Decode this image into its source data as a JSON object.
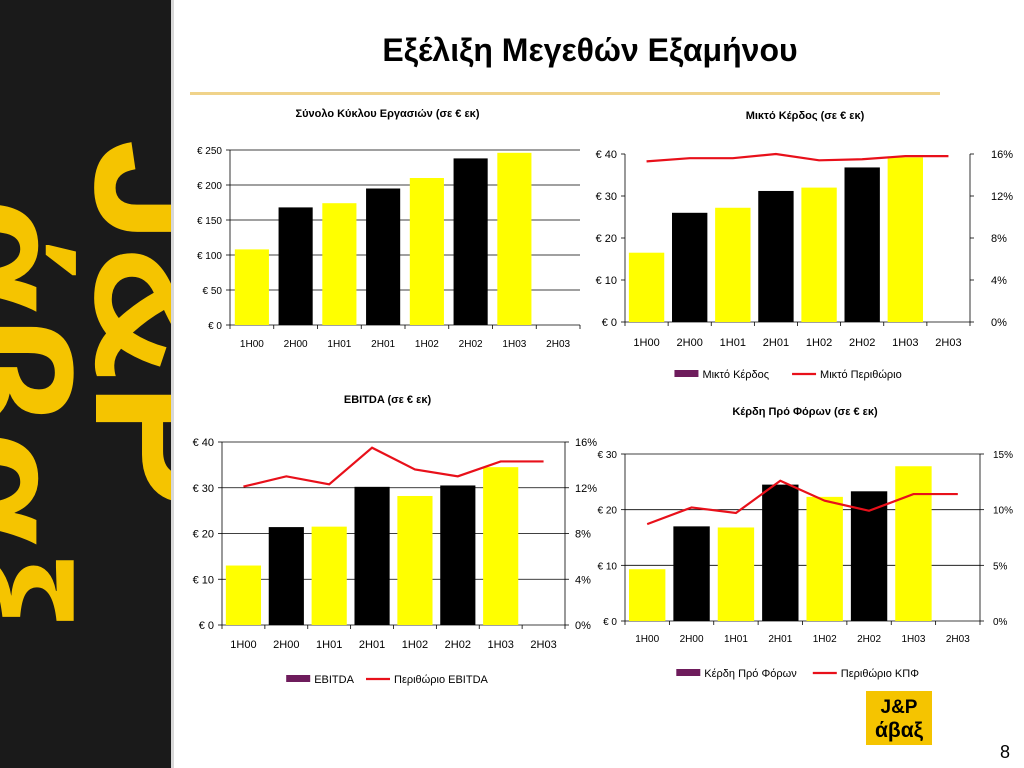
{
  "slide": {
    "title": "Εξέλιξη Μεγεθών Εξαμήνου",
    "page_number": "8"
  },
  "logo": {
    "line1": "J&P",
    "line2": "άβαξ"
  },
  "colors": {
    "black_bar": "#000000",
    "yellow_bar": "#ffff00",
    "line": "#e8101a",
    "legend_bar": "#6e1c5c",
    "stripe": "#1a1a1a",
    "logo_yellow": "#f5c400"
  },
  "chart_data": [
    {
      "id": "turnover",
      "type": "bar",
      "title": "Σύνολο Κύκλου Εργασιών (σε € εκ)",
      "categories": [
        "1H00",
        "2H00",
        "1H01",
        "2H01",
        "1H02",
        "2H02",
        "1H03",
        "2H03"
      ],
      "values": [
        108,
        168,
        174,
        195,
        210,
        238,
        246,
        null
      ],
      "bar_colors": [
        "yellow",
        "black",
        "yellow",
        "black",
        "yellow",
        "black",
        "yellow",
        "black"
      ],
      "ylim": [
        0,
        250
      ],
      "yticks": [
        "€ 0",
        "€ 50",
        "€ 100",
        "€ 150",
        "€ 200",
        "€ 250"
      ],
      "grid": true
    },
    {
      "id": "gross-profit",
      "type": "bar",
      "title": "Μικτό Κέρδος (σε € εκ)",
      "categories": [
        "1H00",
        "2H00",
        "1H01",
        "2H01",
        "1H02",
        "2H02",
        "1H03",
        "2H03"
      ],
      "values": [
        16.5,
        26,
        27.2,
        31.2,
        32,
        36.8,
        39.2,
        null
      ],
      "bar_colors": [
        "yellow",
        "black",
        "yellow",
        "black",
        "yellow",
        "black",
        "yellow",
        "black"
      ],
      "ylim": [
        0,
        40
      ],
      "yticks": [
        "€ 0",
        "€ 10",
        "€ 20",
        "€ 30",
        "€ 40"
      ],
      "y2lim": [
        0,
        16
      ],
      "y2ticks": [
        "0%",
        "4%",
        "8%",
        "12%",
        "16%"
      ],
      "line_values": [
        15.3,
        15.6,
        15.6,
        16.0,
        15.4,
        15.5,
        15.8,
        15.8
      ],
      "legend": [
        "Μικτό Κέρδος",
        "Μικτό Περιθώριο"
      ],
      "grid": false
    },
    {
      "id": "ebitda",
      "type": "bar",
      "title": "EBITDA (σε € εκ)",
      "categories": [
        "1H00",
        "2H00",
        "1H01",
        "2H01",
        "1H02",
        "2H02",
        "1H03",
        "2H03"
      ],
      "values": [
        13,
        21.4,
        21.5,
        30.2,
        28.2,
        30.5,
        34.5,
        null
      ],
      "bar_colors": [
        "yellow",
        "black",
        "yellow",
        "black",
        "yellow",
        "black",
        "yellow",
        "black"
      ],
      "ylim": [
        0,
        40
      ],
      "yticks": [
        "€ 0",
        "€ 10",
        "€ 20",
        "€ 30",
        "€ 40"
      ],
      "y2lim": [
        0,
        16
      ],
      "y2ticks": [
        "0%",
        "4%",
        "8%",
        "12%",
        "16%"
      ],
      "line_values": [
        12.1,
        13.0,
        12.3,
        15.5,
        13.6,
        13.0,
        14.3,
        14.3
      ],
      "legend": [
        "EBITDA",
        "Περιθώριο EBITDA"
      ],
      "grid": true
    },
    {
      "id": "ebt",
      "type": "bar",
      "title": "Κέρδη Πρό Φόρων (σε € εκ)",
      "categories": [
        "1H00",
        "2H00",
        "1H01",
        "2H01",
        "1H02",
        "2H02",
        "1H03",
        "2H03"
      ],
      "values": [
        9.3,
        17,
        16.8,
        24.5,
        22.3,
        23.3,
        27.8,
        null
      ],
      "bar_colors": [
        "yellow",
        "black",
        "yellow",
        "black",
        "yellow",
        "black",
        "yellow",
        "black"
      ],
      "ylim": [
        0,
        30
      ],
      "yticks": [
        "€ 0",
        "€ 10",
        "€ 20",
        "€ 30"
      ],
      "y2lim": [
        0,
        15
      ],
      "y2ticks": [
        "0%",
        "5%",
        "10%",
        "15%"
      ],
      "line_values": [
        8.7,
        10.2,
        9.7,
        12.6,
        10.8,
        9.9,
        11.4,
        11.4
      ],
      "legend": [
        "Κέρδη Πρό Φόρων",
        "Περιθώριο ΚΠΦ"
      ],
      "grid": true
    }
  ]
}
